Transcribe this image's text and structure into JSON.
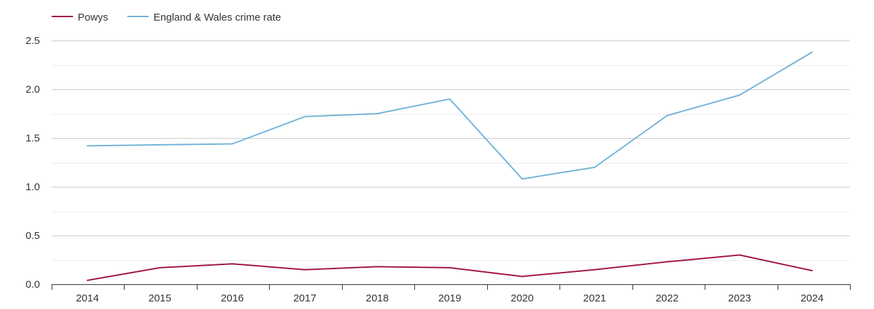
{
  "chart_data": {
    "type": "line",
    "title": "",
    "xlabel": "",
    "ylabel": "",
    "categories": [
      "2014",
      "2015",
      "2016",
      "2017",
      "2018",
      "2019",
      "2020",
      "2021",
      "2022",
      "2023",
      "2024"
    ],
    "ylim": [
      0,
      2.5
    ],
    "yticks": [
      "0.0",
      "0.5",
      "1.0",
      "1.5",
      "2.0",
      "2.5"
    ],
    "grid": true,
    "legend_position": "top-left",
    "series": [
      {
        "name": "Powys",
        "color": "#a0153e",
        "values": [
          0.04,
          0.17,
          0.21,
          0.15,
          0.18,
          0.17,
          0.08,
          0.15,
          0.23,
          0.3,
          0.14
        ]
      },
      {
        "name": "England & Wales crime rate",
        "color": "#73b3d8",
        "values": [
          1.42,
          1.43,
          1.44,
          1.72,
          1.75,
          1.9,
          1.08,
          1.2,
          1.73,
          1.94,
          2.38
        ]
      }
    ]
  }
}
